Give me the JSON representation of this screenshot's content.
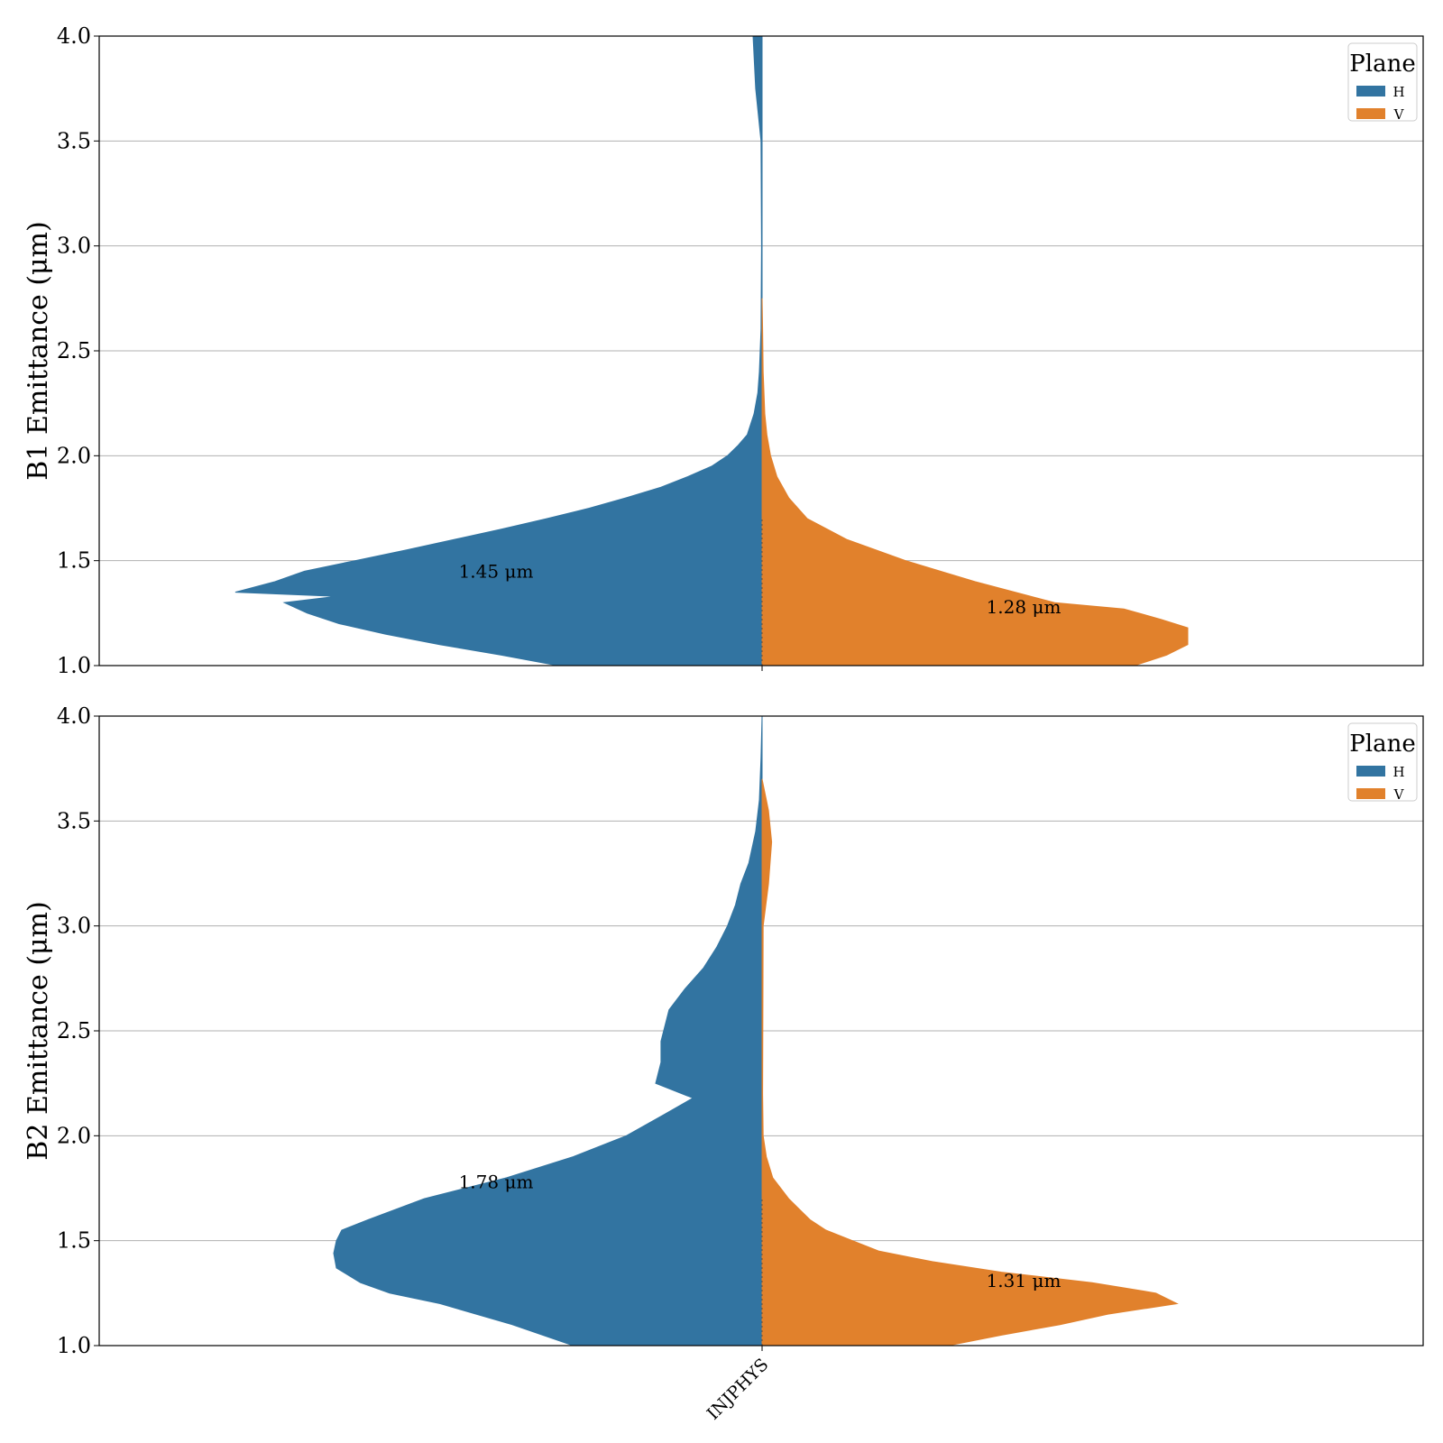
{
  "chart_data": [
    {
      "type": "violin",
      "ylabel": "B1 Emittance (μm)",
      "ylim": [
        1.0,
        4.0
      ],
      "yticks": [
        "1.0",
        "1.5",
        "2.0",
        "2.5",
        "3.0",
        "3.5",
        "4.0"
      ],
      "grid": "horizontal",
      "legend": {
        "title": "Plane",
        "position": "top-right",
        "entries": [
          "H",
          "V"
        ]
      },
      "categories": [],
      "series": [
        {
          "name": "H",
          "color": "#3274a1",
          "side": "left",
          "median_label": "1.45 μm",
          "median": 1.45,
          "profile": [
            [
              1.0,
              0.384
            ],
            [
              1.05,
              0.49
            ],
            [
              1.1,
              0.606
            ],
            [
              1.15,
              0.708
            ],
            [
              1.2,
              0.795
            ],
            [
              1.25,
              0.855
            ],
            [
              1.3,
              0.898
            ],
            [
              1.33,
              0.8
            ],
            [
              1.35,
              0.99
            ],
            [
              1.4,
              0.915
            ],
            [
              1.45,
              0.86
            ],
            [
              1.5,
              0.765
            ],
            [
              1.55,
              0.67
            ],
            [
              1.6,
              0.58
            ],
            [
              1.65,
              0.49
            ],
            [
              1.7,
              0.405
            ],
            [
              1.75,
              0.325
            ],
            [
              1.8,
              0.255
            ],
            [
              1.85,
              0.19
            ],
            [
              1.9,
              0.14
            ],
            [
              1.95,
              0.095
            ],
            [
              2.0,
              0.065
            ],
            [
              2.05,
              0.045
            ],
            [
              2.1,
              0.028
            ],
            [
              2.2,
              0.015
            ],
            [
              2.3,
              0.008
            ],
            [
              2.4,
              0.005
            ],
            [
              2.6,
              0.002
            ],
            [
              3.0,
              0.001
            ],
            [
              3.5,
              0.002
            ],
            [
              3.75,
              0.012
            ],
            [
              4.0,
              0.017
            ]
          ]
        },
        {
          "name": "V",
          "color": "#e1812c",
          "side": "right",
          "median_label": "1.28 μm",
          "median": 1.28,
          "profile": [
            [
              1.0,
              0.7
            ],
            [
              1.05,
              0.76
            ],
            [
              1.1,
              0.8
            ],
            [
              1.15,
              0.8
            ],
            [
              1.18,
              0.8
            ],
            [
              1.22,
              0.75
            ],
            [
              1.27,
              0.68
            ],
            [
              1.3,
              0.55
            ],
            [
              1.4,
              0.4
            ],
            [
              1.5,
              0.27
            ],
            [
              1.6,
              0.16
            ],
            [
              1.7,
              0.085
            ],
            [
              1.8,
              0.05
            ],
            [
              1.9,
              0.028
            ],
            [
              2.0,
              0.016
            ],
            [
              2.1,
              0.009
            ],
            [
              2.2,
              0.005
            ],
            [
              2.4,
              0.002
            ],
            [
              2.6,
              0.001
            ],
            [
              2.75,
              0.0
            ]
          ]
        }
      ]
    },
    {
      "type": "violin",
      "ylabel": "B2 Emittance (μm)",
      "ylim": [
        1.0,
        4.0
      ],
      "yticks": [
        "1.0",
        "1.5",
        "2.0",
        "2.5",
        "3.0",
        "3.5",
        "4.0"
      ],
      "grid": "horizontal",
      "legend": {
        "title": "Plane",
        "position": "top-right",
        "entries": [
          "H",
          "V"
        ]
      },
      "categories": [
        "INJPHYS"
      ],
      "series": [
        {
          "name": "H",
          "color": "#3274a1",
          "side": "left",
          "median_label": "1.78 μm",
          "median": 1.78,
          "profile": [
            [
              1.0,
              0.355
            ],
            [
              1.1,
              0.47
            ],
            [
              1.2,
              0.605
            ],
            [
              1.25,
              0.7
            ],
            [
              1.3,
              0.755
            ],
            [
              1.37,
              0.8
            ],
            [
              1.44,
              0.805
            ],
            [
              1.5,
              0.8
            ],
            [
              1.55,
              0.79
            ],
            [
              1.6,
              0.74
            ],
            [
              1.7,
              0.635
            ],
            [
              1.8,
              0.48
            ],
            [
              1.9,
              0.355
            ],
            [
              2.0,
              0.255
            ],
            [
              2.1,
              0.185
            ],
            [
              2.18,
              0.13
            ],
            [
              2.25,
              0.2
            ],
            [
              2.35,
              0.19
            ],
            [
              2.45,
              0.19
            ],
            [
              2.6,
              0.175
            ],
            [
              2.7,
              0.145
            ],
            [
              2.8,
              0.11
            ],
            [
              2.9,
              0.085
            ],
            [
              3.0,
              0.065
            ],
            [
              3.1,
              0.05
            ],
            [
              3.2,
              0.04
            ],
            [
              3.3,
              0.025
            ],
            [
              3.45,
              0.012
            ],
            [
              3.6,
              0.005
            ],
            [
              3.8,
              0.002
            ],
            [
              4.0,
              0.0
            ]
          ]
        },
        {
          "name": "V",
          "color": "#e1812c",
          "side": "right",
          "median_label": "1.31 μm",
          "median": 1.31,
          "profile": [
            [
              1.0,
              0.35
            ],
            [
              1.05,
              0.45
            ],
            [
              1.1,
              0.56
            ],
            [
              1.15,
              0.65
            ],
            [
              1.2,
              0.78
            ],
            [
              1.25,
              0.74
            ],
            [
              1.3,
              0.62
            ],
            [
              1.35,
              0.45
            ],
            [
              1.4,
              0.32
            ],
            [
              1.45,
              0.22
            ],
            [
              1.5,
              0.17
            ],
            [
              1.55,
              0.12
            ],
            [
              1.6,
              0.09
            ],
            [
              1.7,
              0.05
            ],
            [
              1.8,
              0.02
            ],
            [
              1.9,
              0.008
            ],
            [
              2.0,
              0.002
            ],
            [
              2.2,
              0.001
            ],
            [
              3.0,
              0.002
            ],
            [
              3.2,
              0.012
            ],
            [
              3.4,
              0.018
            ],
            [
              3.55,
              0.012
            ],
            [
              3.7,
              0.0
            ]
          ]
        }
      ]
    }
  ]
}
